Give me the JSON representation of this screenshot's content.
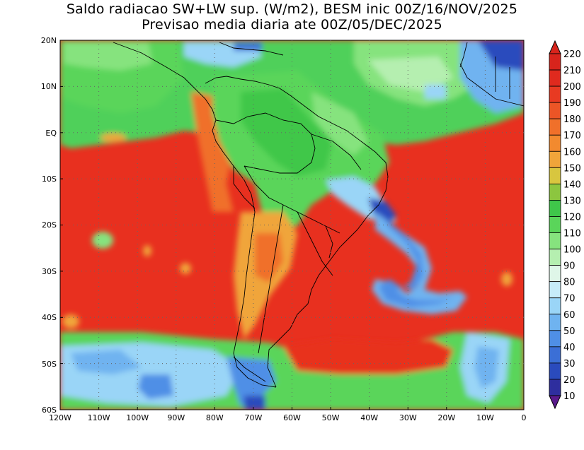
{
  "title": {
    "line1": "Saldo radiacao SW+LW sup. (W/m2), BESM inic 00Z/16/NOV/2025",
    "line2": "Previsao media diaria ate 00Z/05/DEC/2025"
  },
  "map": {
    "lat_labels": [
      "20N",
      "10N",
      "EQ",
      "10S",
      "20S",
      "30S",
      "40S",
      "50S",
      "60S"
    ],
    "lon_labels": [
      "120W",
      "110W",
      "100W",
      "90W",
      "80W",
      "70W",
      "60W",
      "50W",
      "40W",
      "30W",
      "20W",
      "10W",
      "0"
    ],
    "extent": {
      "lon": [
        -120,
        0
      ],
      "lat": [
        -60,
        20
      ]
    }
  },
  "colorbar": {
    "unit": "W/m2",
    "levels": [
      10,
      20,
      30,
      40,
      50,
      60,
      70,
      80,
      90,
      100,
      110,
      120,
      130,
      140,
      150,
      160,
      170,
      180,
      190,
      200,
      210,
      220
    ],
    "colors": [
      "#5a1a8c",
      "#2e2e9e",
      "#2a4bbd",
      "#3b6fd6",
      "#4f8fe6",
      "#6fb3f0",
      "#9ad5f7",
      "#c7ecf9",
      "#dff6e8",
      "#b5efb0",
      "#86e37e",
      "#5ad55a",
      "#3fc74a",
      "#8cc63f",
      "#d8c63f",
      "#f0a53a",
      "#f28a2f",
      "#f0702a",
      "#ec5526",
      "#e83a22",
      "#e02a1e",
      "#d8241c"
    ],
    "cap_low_color": "#5a1a8c",
    "cap_high_color": "#d8241c"
  }
}
